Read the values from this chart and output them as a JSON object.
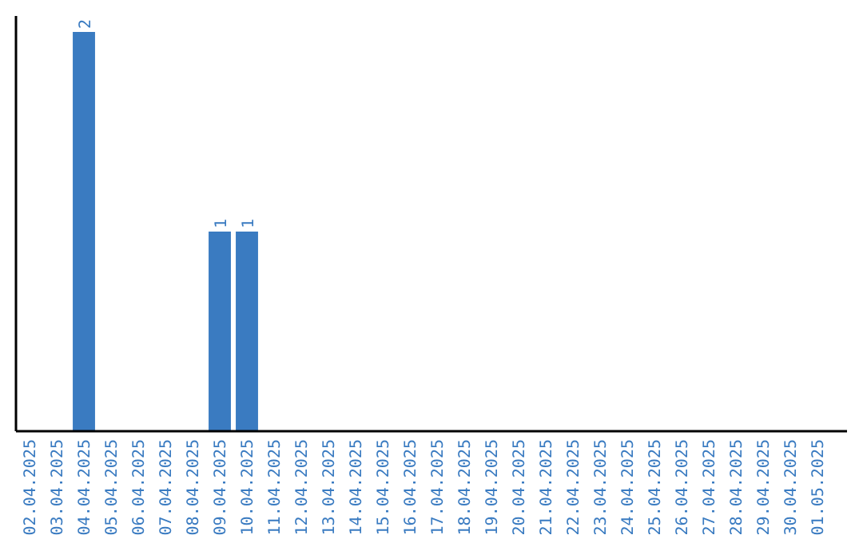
{
  "chart_data": {
    "type": "bar",
    "categories": [
      "02.04.2025",
      "03.04.2025",
      "04.04.2025",
      "05.04.2025",
      "06.04.2025",
      "07.04.2025",
      "08.04.2025",
      "09.04.2025",
      "10.04.2025",
      "11.04.2025",
      "12.04.2025",
      "13.04.2025",
      "14.04.2025",
      "15.04.2025",
      "16.04.2025",
      "17.04.2025",
      "18.04.2025",
      "19.04.2025",
      "20.04.2025",
      "21.04.2025",
      "22.04.2025",
      "23.04.2025",
      "24.04.2025",
      "25.04.2025",
      "26.04.2025",
      "27.04.2025",
      "28.04.2025",
      "29.04.2025",
      "30.04.2025",
      "01.05.2025"
    ],
    "values": [
      0,
      0,
      2,
      0,
      0,
      0,
      0,
      1,
      1,
      0,
      0,
      0,
      0,
      0,
      0,
      0,
      0,
      0,
      0,
      0,
      0,
      0,
      0,
      0,
      0,
      0,
      0,
      0,
      0,
      0
    ],
    "value_labels": [
      null,
      null,
      "2",
      null,
      null,
      null,
      null,
      "1",
      "1",
      null,
      null,
      null,
      null,
      null,
      null,
      null,
      null,
      null,
      null,
      null,
      null,
      null,
      null,
      null,
      null,
      null,
      null,
      null,
      null,
      null
    ],
    "color": "#3a7bc1"
  }
}
